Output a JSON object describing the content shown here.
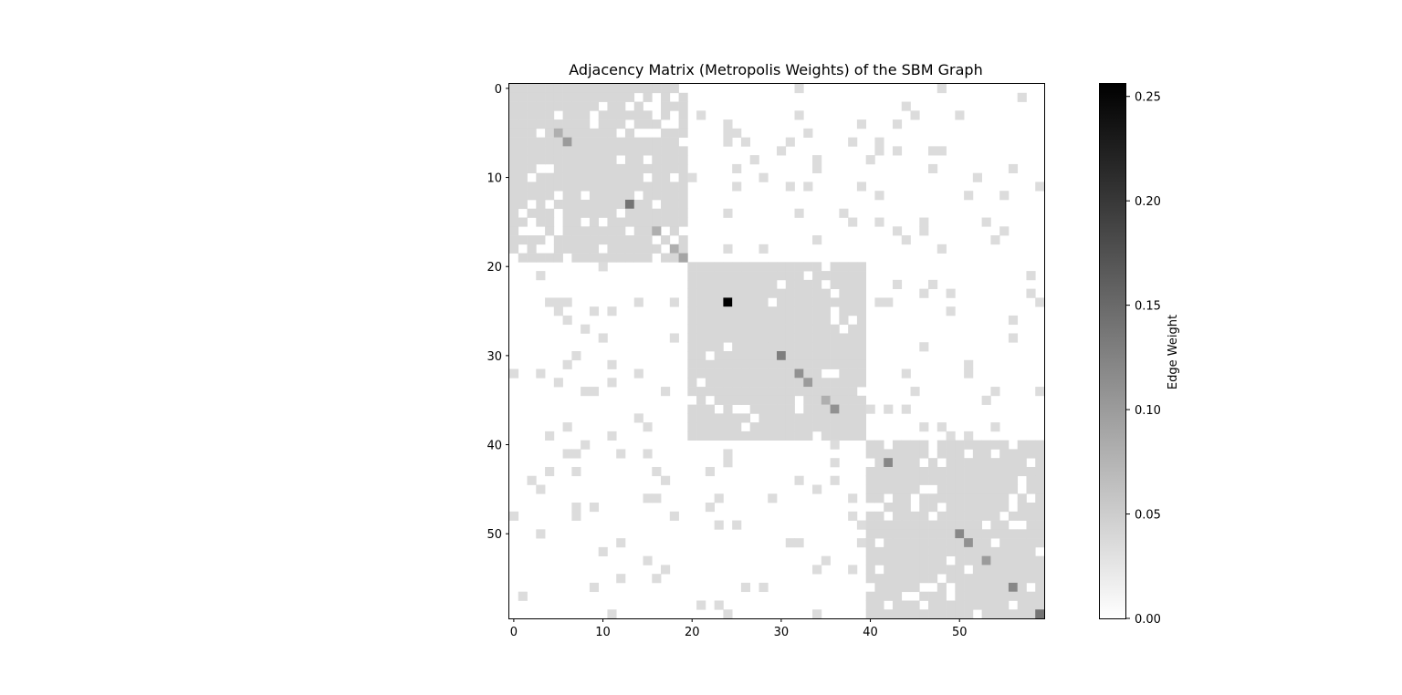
{
  "chart_data": {
    "type": "heatmap",
    "title": "Adjacency Matrix (Metropolis Weights) of the SBM Graph",
    "xlabel": "",
    "ylabel": "",
    "n": 60,
    "x_ticks": [
      0,
      10,
      20,
      30,
      40,
      50
    ],
    "y_ticks": [
      0,
      10,
      20,
      30,
      40,
      50
    ],
    "blocks": [
      {
        "name": "",
        "start": 0,
        "end": 19
      },
      {
        "name": "",
        "start": 20,
        "end": 39
      },
      {
        "name": "",
        "start": 40,
        "end": 59
      }
    ],
    "colormap": "gray_r",
    "colorbar": {
      "label": "Edge Weight",
      "vmin": 0.0,
      "vmax": 0.256,
      "ticks": [
        0.0,
        0.05,
        0.1,
        0.15,
        0.2,
        0.25
      ],
      "tick_labels": [
        "0.00",
        "0.05",
        "0.10",
        "0.15",
        "0.20",
        "0.25"
      ]
    },
    "diagonal_weights": [
      {
        "i": 5,
        "w": 0.08
      },
      {
        "i": 6,
        "w": 0.1
      },
      {
        "i": 13,
        "w": 0.14
      },
      {
        "i": 16,
        "w": 0.08
      },
      {
        "i": 18,
        "w": 0.08
      },
      {
        "i": 19,
        "w": 0.09
      },
      {
        "i": 24,
        "w": 0.256
      },
      {
        "i": 30,
        "w": 0.13
      },
      {
        "i": 32,
        "w": 0.11
      },
      {
        "i": 33,
        "w": 0.1
      },
      {
        "i": 35,
        "w": 0.08
      },
      {
        "i": 36,
        "w": 0.11
      },
      {
        "i": 42,
        "w": 0.12
      },
      {
        "i": 50,
        "w": 0.12
      },
      {
        "i": 51,
        "w": 0.11
      },
      {
        "i": 53,
        "w": 0.1
      },
      {
        "i": 56,
        "w": 0.12
      },
      {
        "i": 59,
        "w": 0.14
      }
    ],
    "within_block_weight": 0.04,
    "between_block_weight": 0.035,
    "within_block_density": 0.88,
    "between_block_density": 0.07
  }
}
